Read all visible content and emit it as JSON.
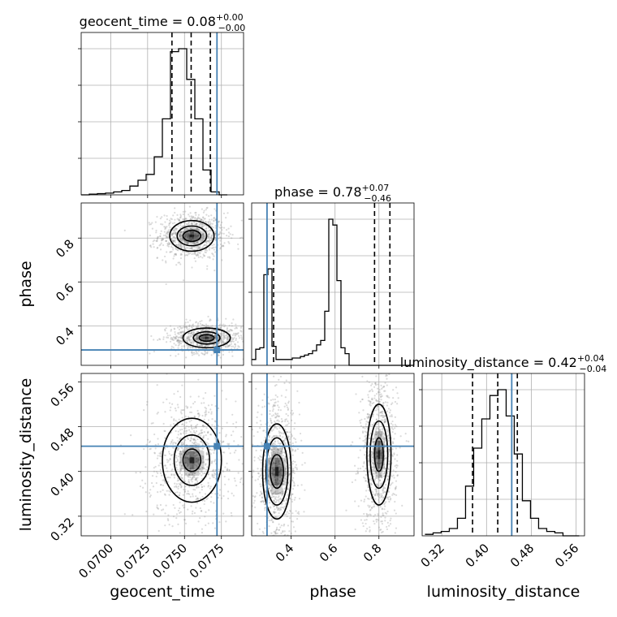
{
  "chart_data": {
    "type": "corner",
    "parameters": [
      "geocent_time",
      "phase",
      "luminosity_distance"
    ],
    "axis_labels": {
      "geocent_time": "geocent_time",
      "phase": "phase",
      "luminosity_distance": "luminosity_distance"
    },
    "ranges": {
      "geocent_time": [
        0.068,
        0.079
      ],
      "phase": [
        0.22,
        0.96
      ],
      "luminosity_distance": [
        0.285,
        0.575
      ]
    },
    "ticks": {
      "geocent_time": [
        "0.0700",
        "0.0725",
        "0.0750",
        "0.0775"
      ],
      "phase_y": [
        "0.4",
        "0.6",
        "0.8"
      ],
      "phase_x": [
        "0.4",
        "0.6",
        "0.8"
      ],
      "luminosity_distance": [
        "0.32",
        "0.40",
        "0.48",
        "0.56"
      ]
    },
    "truth": {
      "geocent_time": 0.0772,
      "phase": 0.29,
      "luminosity_distance": 0.445
    },
    "titles": [
      {
        "param": "geocent_time",
        "text": "geocent_time = 0.08",
        "sup": "+0.00",
        "sub": "−0.00"
      },
      {
        "param": "phase",
        "text": "phase = 0.78",
        "sup": "+0.07",
        "sub": "−0.46"
      },
      {
        "param": "luminosity_distance",
        "text": "luminosity_distance = 0.42",
        "sup": "+0.04",
        "sub": "−0.04"
      }
    ],
    "histograms": {
      "geocent_time": {
        "edges_start": 0.068,
        "bin_width": 0.00055,
        "counts": [
          0,
          0.5,
          0.8,
          1.2,
          2,
          3,
          6,
          10,
          14,
          26,
          52,
          98,
          100,
          79,
          52,
          17,
          2,
          0
        ],
        "quantiles": [
          0.07415,
          0.07545,
          0.07675
        ]
      },
      "phase": {
        "edges_start": 0.22,
        "bin_width": 0.0185,
        "counts": [
          4,
          11,
          12,
          62,
          66,
          13,
          4,
          4,
          4,
          4,
          5,
          5,
          6,
          7,
          8,
          10,
          14,
          17,
          37,
          100,
          96,
          58,
          12,
          8,
          0,
          0,
          0,
          0,
          0,
          0,
          0,
          0,
          0,
          0,
          0,
          0,
          0,
          0,
          0,
          0
        ],
        "quantiles": [
          0.32,
          0.78,
          0.85
        ]
      },
      "luminosity_distance": {
        "edges_start": 0.29,
        "bin_width": 0.0145,
        "counts": [
          1,
          2,
          3,
          5,
          12,
          34,
          60,
          80,
          96,
          100,
          82,
          56,
          24,
          12,
          5,
          3,
          2,
          0,
          0
        ],
        "quantiles": [
          0.375,
          0.42,
          0.455
        ]
      }
    },
    "contours": {
      "phase_vs_geocent_time": [
        {
          "cx": 0.0755,
          "cy": 0.81,
          "rx": [
            0.0006,
            0.001,
            0.0015
          ],
          "ry": [
            0.025,
            0.045,
            0.07
          ]
        },
        {
          "cx": 0.0765,
          "cy": 0.345,
          "rx": [
            0.0005,
            0.0009,
            0.0016
          ],
          "ry": [
            0.015,
            0.028,
            0.045
          ]
        }
      ],
      "luminosity_distance_vs_geocent_time": [
        {
          "cx": 0.0755,
          "cy": 0.42,
          "rx": [
            0.0006,
            0.0012,
            0.002
          ],
          "ry": [
            0.02,
            0.045,
            0.075
          ]
        }
      ],
      "luminosity_distance_vs_phase": [
        {
          "cx": 0.335,
          "cy": 0.4,
          "rx": [
            0.03,
            0.05,
            0.065
          ],
          "ry": [
            0.03,
            0.06,
            0.085
          ]
        },
        {
          "cx": 0.8,
          "cy": 0.43,
          "rx": [
            0.02,
            0.04,
            0.055
          ],
          "ry": [
            0.03,
            0.06,
            0.09
          ]
        }
      ]
    },
    "grid": true
  }
}
